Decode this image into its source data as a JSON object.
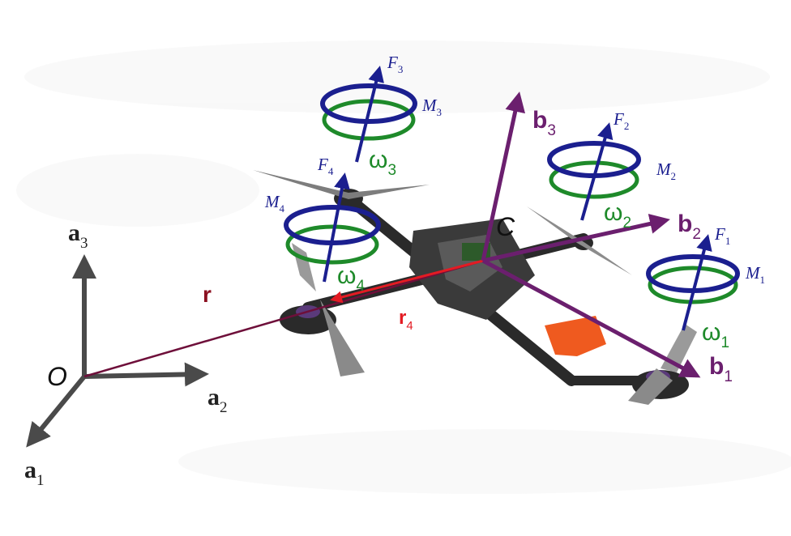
{
  "colors": {
    "world_axes": "#4a4a4a",
    "body_axes": "#6b1f6e",
    "force": "#1b1f8f",
    "omega": "#1e8a2a",
    "position": "#6e0f3a",
    "r4": "#e31b23",
    "r_label": "#8b1020"
  },
  "origin_label": "O",
  "center_label": "C",
  "world_frame": [
    {
      "base": "a",
      "sub": "1"
    },
    {
      "base": "a",
      "sub": "2"
    },
    {
      "base": "a",
      "sub": "3"
    }
  ],
  "body_frame": [
    {
      "base": "b",
      "sub": "1"
    },
    {
      "base": "b",
      "sub": "2"
    },
    {
      "base": "b",
      "sub": "3"
    }
  ],
  "position_label": "r",
  "arm_label": {
    "base": "r",
    "sub": "4"
  },
  "rotors": [
    {
      "force": {
        "base": "F",
        "sub": "1"
      },
      "moment": {
        "base": "M",
        "sub": "1"
      },
      "omega": {
        "base": "ω",
        "sub": "1"
      }
    },
    {
      "force": {
        "base": "F",
        "sub": "2"
      },
      "moment": {
        "base": "M",
        "sub": "2"
      },
      "omega": {
        "base": "ω",
        "sub": "2"
      }
    },
    {
      "force": {
        "base": "F",
        "sub": "3"
      },
      "moment": {
        "base": "M",
        "sub": "3"
      },
      "omega": {
        "base": "ω",
        "sub": "3"
      }
    },
    {
      "force": {
        "base": "F",
        "sub": "4"
      },
      "moment": {
        "base": "M",
        "sub": "4"
      },
      "omega": {
        "base": "ω",
        "sub": "4"
      }
    }
  ]
}
